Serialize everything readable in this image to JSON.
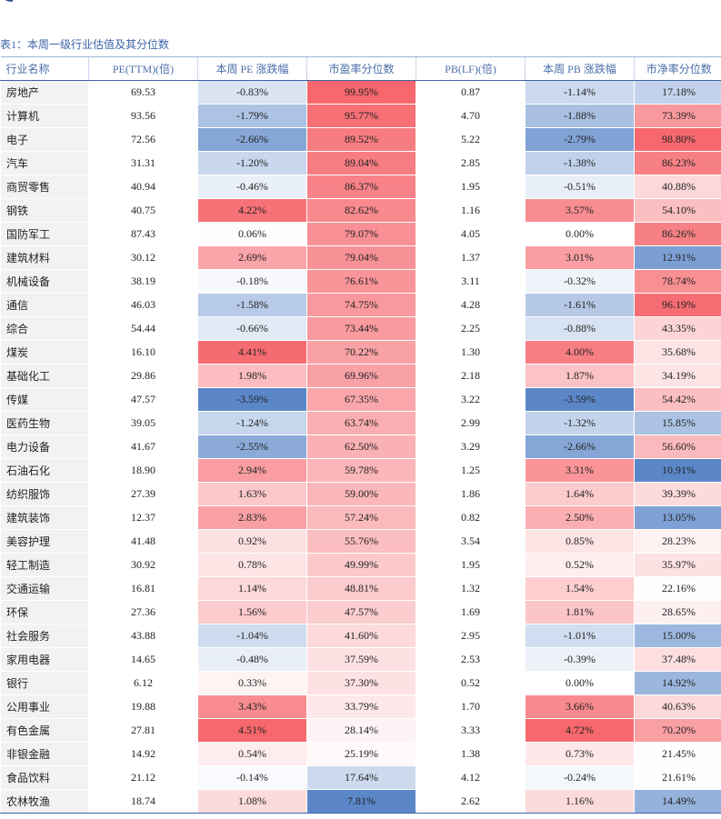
{
  "caption": "表1：本周一级行业估值及其分位数",
  "table": {
    "header": [
      "行业名称",
      "PE(TTM)(倍)",
      "本周 PE 涨跌幅",
      "市盈率分位数",
      "PB(LF)(倍)",
      "本周 PB 涨跌幅",
      "市净率分位数"
    ],
    "rows": [
      [
        "房地产",
        "69.53",
        "-0.83%",
        "99.95%",
        "0.87",
        "-1.14%",
        "17.18%"
      ],
      [
        "计算机",
        "93.56",
        "-1.79%",
        "95.77%",
        "4.70",
        "-1.88%",
        "73.39%"
      ],
      [
        "电子",
        "72.56",
        "-2.66%",
        "89.52%",
        "5.22",
        "-2.79%",
        "98.80%"
      ],
      [
        "汽车",
        "31.31",
        "-1.20%",
        "89.04%",
        "2.85",
        "-1.38%",
        "86.23%"
      ],
      [
        "商贸零售",
        "40.94",
        "-0.46%",
        "86.37%",
        "1.95",
        "-0.51%",
        "40.88%"
      ],
      [
        "钢铁",
        "40.75",
        "4.22%",
        "82.62%",
        "1.16",
        "3.57%",
        "54.10%"
      ],
      [
        "国防军工",
        "87.43",
        "0.06%",
        "79.07%",
        "4.05",
        "0.00%",
        "86.26%"
      ],
      [
        "建筑材料",
        "30.12",
        "2.69%",
        "79.04%",
        "1.37",
        "3.01%",
        "12.91%"
      ],
      [
        "机械设备",
        "38.19",
        "-0.18%",
        "76.61%",
        "3.11",
        "-0.32%",
        "78.74%"
      ],
      [
        "通信",
        "46.03",
        "-1.58%",
        "74.75%",
        "4.28",
        "-1.61%",
        "96.19%"
      ],
      [
        "综合",
        "54.44",
        "-0.66%",
        "73.44%",
        "2.25",
        "-0.88%",
        "43.35%"
      ],
      [
        "煤炭",
        "16.10",
        "4.41%",
        "70.22%",
        "1.30",
        "4.00%",
        "35.68%"
      ],
      [
        "基础化工",
        "29.86",
        "1.98%",
        "69.96%",
        "2.18",
        "1.87%",
        "34.19%"
      ],
      [
        "传媒",
        "47.57",
        "-3.59%",
        "67.35%",
        "3.22",
        "-3.59%",
        "54.42%"
      ],
      [
        "医药生物",
        "39.05",
        "-1.24%",
        "63.74%",
        "2.99",
        "-1.32%",
        "15.85%"
      ],
      [
        "电力设备",
        "41.67",
        "-2.55%",
        "62.50%",
        "3.29",
        "-2.66%",
        "56.60%"
      ],
      [
        "石油石化",
        "18.90",
        "2.94%",
        "59.78%",
        "1.25",
        "3.31%",
        "10.91%"
      ],
      [
        "纺织服饰",
        "27.39",
        "1.63%",
        "59.00%",
        "1.86",
        "1.64%",
        "39.39%"
      ],
      [
        "建筑装饰",
        "12.37",
        "2.83%",
        "57.24%",
        "0.82",
        "2.50%",
        "13.05%"
      ],
      [
        "美容护理",
        "41.48",
        "0.92%",
        "55.76%",
        "3.54",
        "0.85%",
        "28.23%"
      ],
      [
        "轻工制造",
        "30.92",
        "0.78%",
        "49.99%",
        "1.95",
        "0.52%",
        "35.97%"
      ],
      [
        "交通运输",
        "16.81",
        "1.14%",
        "48.81%",
        "1.32",
        "1.54%",
        "22.16%"
      ],
      [
        "环保",
        "27.36",
        "1.56%",
        "47.57%",
        "1.69",
        "1.81%",
        "28.65%"
      ],
      [
        "社会服务",
        "43.88",
        "-1.04%",
        "41.60%",
        "2.95",
        "-1.01%",
        "15.00%"
      ],
      [
        "家用电器",
        "14.65",
        "-0.48%",
        "37.59%",
        "2.53",
        "-0.39%",
        "37.48%"
      ],
      [
        "银行",
        "6.12",
        "0.33%",
        "37.30%",
        "0.52",
        "0.00%",
        "14.92%"
      ],
      [
        "公用事业",
        "19.88",
        "3.43%",
        "33.79%",
        "1.70",
        "3.66%",
        "40.63%"
      ],
      [
        "有色金属",
        "27.81",
        "4.51%",
        "28.14%",
        "3.33",
        "4.72%",
        "70.20%"
      ],
      [
        "非银金融",
        "14.92",
        "0.54%",
        "25.19%",
        "1.38",
        "0.73%",
        "21.45%"
      ],
      [
        "食品饮料",
        "21.12",
        "-0.14%",
        "17.64%",
        "4.12",
        "-0.24%",
        "21.61%"
      ],
      [
        "农林牧渔",
        "18.74",
        "1.08%",
        "7.81%",
        "2.62",
        "1.16%",
        "14.49%"
      ]
    ]
  }
}
